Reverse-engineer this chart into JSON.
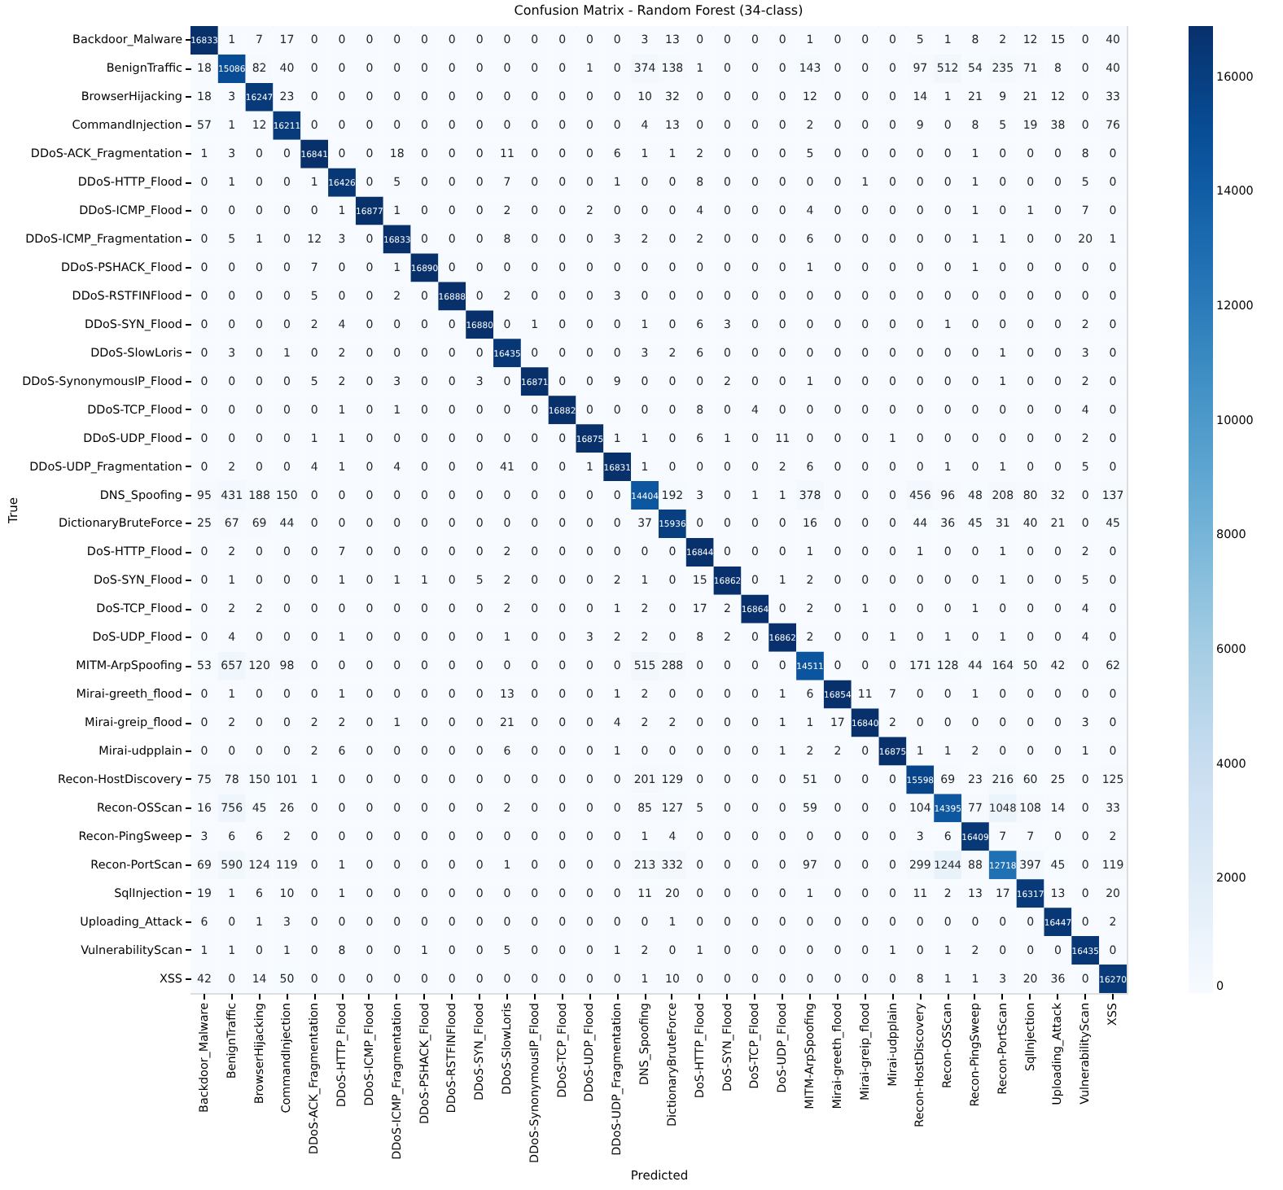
{
  "chart_data": {
    "type": "heatmap",
    "title": "Confusion Matrix - Random Forest (34-class)",
    "xlabel": "Predicted",
    "ylabel": "True",
    "categories": [
      "Backdoor_Malware",
      "BenignTraffic",
      "BrowserHijacking",
      "CommandInjection",
      "DDoS-ACK_Fragmentation",
      "DDoS-HTTP_Flood",
      "DDoS-ICMP_Flood",
      "DDoS-ICMP_Fragmentation",
      "DDoS-PSHACK_Flood",
      "DDoS-RSTFINFlood",
      "DDoS-SYN_Flood",
      "DDoS-SlowLoris",
      "DDoS-SynonymousIP_Flood",
      "DDoS-TCP_Flood",
      "DDoS-UDP_Flood",
      "DDoS-UDP_Fragmentation",
      "DNS_Spoofing",
      "DictionaryBruteForce",
      "DoS-HTTP_Flood",
      "DoS-SYN_Flood",
      "DoS-TCP_Flood",
      "DoS-UDP_Flood",
      "MITM-ArpSpoofing",
      "Mirai-greeth_flood",
      "Mirai-greip_flood",
      "Mirai-udpplain",
      "Recon-HostDiscovery",
      "Recon-OSScan",
      "Recon-PingSweep",
      "Recon-PortScan",
      "SqlInjection",
      "Uploading_Attack",
      "VulnerabilityScan",
      "XSS"
    ],
    "y_categories": [
      "Backdoor_Malware",
      "BenignTraffic",
      "BrowserHijacking",
      "CommandInjection",
      "DDoS-ACK_Fragmentation",
      "DDoS-HTTP_Flood",
      "DDoS-ICMP_Flood",
      "DDoS-ICMP_Fragmentation",
      "DDoS-PSHACK_Flood",
      "DDoS-RSTFINFlood",
      "DDoS-SYN_Flood",
      "DDoS-SlowLoris",
      "DDoS-SynonymousIP_Flood",
      "DDoS-TCP_Flood",
      "DDoS-UDP_Flood",
      "DDoS-UDP_Fragmentation",
      "DNS_Spoofing",
      "DictionaryBruteForce",
      "DoS-HTTP_Flood",
      "DoS-SYN_Flood",
      "DoS-TCP_Flood",
      "DoS-UDP_Flood",
      "MITM-ArpSpoofing",
      "Mirai-greeth_flood",
      "Mirai-greip_flood",
      "Mirai-udpplain",
      "Recon-HostDiscovery",
      "Recon-OSScan",
      "Recon-PingSweep",
      "Recon-PortScan",
      "SqlInjection",
      "Uploading_Attack",
      "VulnerabilityScan",
      "XSS"
    ],
    "cells": [
      [
        16833,
        1,
        7,
        17,
        0,
        0,
        0,
        0,
        0,
        0,
        0,
        0,
        0,
        0,
        0,
        0,
        3,
        13,
        0,
        0,
        0,
        0,
        1,
        0,
        0,
        0,
        5,
        1,
        8,
        2,
        12,
        15,
        0,
        40
      ],
      [
        18,
        15086,
        82,
        40,
        0,
        0,
        0,
        0,
        0,
        0,
        0,
        0,
        0,
        0,
        1,
        0,
        374,
        138,
        1,
        0,
        0,
        0,
        143,
        0,
        0,
        0,
        97,
        512,
        54,
        235,
        71,
        8,
        0,
        40
      ],
      [
        18,
        3,
        16247,
        23,
        0,
        0,
        0,
        0,
        0,
        0,
        0,
        0,
        0,
        0,
        0,
        0,
        10,
        32,
        0,
        0,
        0,
        0,
        12,
        0,
        0,
        0,
        14,
        1,
        21,
        9,
        21,
        12,
        0,
        33
      ],
      [
        57,
        1,
        12,
        16211,
        0,
        0,
        0,
        0,
        0,
        0,
        0,
        0,
        0,
        0,
        0,
        0,
        4,
        13,
        0,
        0,
        0,
        0,
        2,
        0,
        0,
        0,
        9,
        0,
        8,
        5,
        19,
        38,
        0,
        76
      ],
      [
        1,
        3,
        0,
        0,
        16841,
        0,
        0,
        18,
        0,
        0,
        0,
        11,
        0,
        0,
        0,
        6,
        1,
        1,
        2,
        0,
        0,
        0,
        5,
        0,
        0,
        0,
        0,
        0,
        1,
        0,
        0,
        0,
        8,
        0
      ],
      [
        0,
        1,
        0,
        0,
        1,
        16426,
        0,
        5,
        0,
        0,
        0,
        7,
        0,
        0,
        0,
        1,
        0,
        0,
        8,
        0,
        0,
        0,
        0,
        0,
        1,
        0,
        0,
        0,
        1,
        0,
        0,
        0,
        5,
        0
      ],
      [
        0,
        0,
        0,
        0,
        0,
        1,
        16877,
        1,
        0,
        0,
        0,
        2,
        0,
        0,
        2,
        0,
        0,
        0,
        4,
        0,
        0,
        0,
        4,
        0,
        0,
        0,
        0,
        0,
        1,
        0,
        1,
        0,
        7,
        0
      ],
      [
        0,
        5,
        1,
        0,
        12,
        3,
        0,
        16833,
        0,
        0,
        0,
        8,
        0,
        0,
        0,
        3,
        2,
        0,
        2,
        0,
        0,
        0,
        6,
        0,
        0,
        0,
        0,
        0,
        1,
        1,
        0,
        0,
        20,
        1
      ],
      [
        0,
        0,
        0,
        0,
        7,
        0,
        0,
        1,
        16890,
        0,
        0,
        0,
        0,
        0,
        0,
        0,
        0,
        0,
        0,
        0,
        0,
        0,
        1,
        0,
        0,
        0,
        0,
        0,
        1,
        0,
        0,
        0,
        0,
        0
      ],
      [
        0,
        0,
        0,
        0,
        5,
        0,
        0,
        2,
        0,
        16888,
        0,
        2,
        0,
        0,
        0,
        3,
        0,
        0,
        0,
        0,
        0,
        0,
        0,
        0,
        0,
        0,
        0,
        0,
        0,
        0,
        0,
        0,
        0,
        0
      ],
      [
        0,
        0,
        0,
        0,
        2,
        4,
        0,
        0,
        0,
        0,
        16880,
        0,
        1,
        0,
        0,
        0,
        1,
        0,
        6,
        3,
        0,
        0,
        0,
        0,
        0,
        0,
        0,
        1,
        0,
        0,
        0,
        0,
        2,
        0
      ],
      [
        0,
        3,
        0,
        1,
        0,
        2,
        0,
        0,
        0,
        0,
        0,
        16435,
        0,
        0,
        0,
        0,
        3,
        2,
        6,
        0,
        0,
        0,
        0,
        0,
        0,
        0,
        0,
        0,
        0,
        1,
        0,
        0,
        3,
        0
      ],
      [
        0,
        0,
        0,
        0,
        5,
        2,
        0,
        3,
        0,
        0,
        3,
        0,
        16871,
        0,
        0,
        9,
        0,
        0,
        0,
        2,
        0,
        0,
        1,
        0,
        0,
        0,
        0,
        0,
        0,
        1,
        0,
        0,
        2,
        0
      ],
      [
        0,
        0,
        0,
        0,
        0,
        1,
        0,
        1,
        0,
        0,
        0,
        0,
        0,
        16882,
        0,
        0,
        0,
        0,
        8,
        0,
        4,
        0,
        0,
        0,
        0,
        0,
        0,
        0,
        0,
        0,
        0,
        0,
        4,
        0
      ],
      [
        0,
        0,
        0,
        0,
        1,
        1,
        0,
        0,
        0,
        0,
        0,
        0,
        0,
        0,
        16875,
        1,
        1,
        0,
        6,
        1,
        0,
        11,
        0,
        0,
        0,
        1,
        0,
        0,
        0,
        0,
        0,
        0,
        2,
        0
      ],
      [
        0,
        2,
        0,
        0,
        4,
        1,
        0,
        4,
        0,
        0,
        0,
        41,
        0,
        0,
        1,
        16831,
        1,
        0,
        0,
        0,
        0,
        2,
        6,
        0,
        0,
        0,
        0,
        1,
        0,
        1,
        0,
        0,
        5,
        0
      ],
      [
        95,
        431,
        188,
        150,
        0,
        0,
        0,
        0,
        0,
        0,
        0,
        0,
        0,
        0,
        0,
        0,
        14404,
        192,
        3,
        0,
        1,
        1,
        378,
        0,
        0,
        0,
        456,
        96,
        48,
        208,
        80,
        32,
        0,
        137
      ],
      [
        25,
        67,
        69,
        44,
        0,
        0,
        0,
        0,
        0,
        0,
        0,
        0,
        0,
        0,
        0,
        0,
        37,
        15936,
        0,
        0,
        0,
        0,
        16,
        0,
        0,
        0,
        44,
        36,
        45,
        31,
        40,
        21,
        0,
        45
      ],
      [
        0,
        2,
        0,
        0,
        0,
        7,
        0,
        0,
        0,
        0,
        0,
        2,
        0,
        0,
        0,
        0,
        0,
        0,
        16844,
        0,
        0,
        0,
        1,
        0,
        0,
        0,
        1,
        0,
        0,
        1,
        0,
        0,
        2,
        0
      ],
      [
        0,
        1,
        0,
        0,
        0,
        1,
        0,
        1,
        1,
        0,
        5,
        2,
        0,
        0,
        0,
        2,
        1,
        0,
        15,
        16862,
        0,
        1,
        2,
        0,
        0,
        0,
        0,
        0,
        0,
        1,
        0,
        0,
        5,
        0
      ],
      [
        0,
        2,
        2,
        0,
        0,
        0,
        0,
        0,
        0,
        0,
        0,
        2,
        0,
        0,
        0,
        1,
        2,
        0,
        17,
        2,
        16864,
        0,
        2,
        0,
        1,
        0,
        0,
        0,
        1,
        0,
        0,
        0,
        4,
        0
      ],
      [
        0,
        4,
        0,
        0,
        0,
        1,
        0,
        0,
        0,
        0,
        0,
        1,
        0,
        0,
        3,
        2,
        2,
        0,
        8,
        2,
        0,
        16862,
        2,
        0,
        0,
        1,
        0,
        1,
        0,
        1,
        0,
        0,
        4,
        0
      ],
      [
        53,
        657,
        120,
        98,
        0,
        0,
        0,
        0,
        0,
        0,
        0,
        0,
        0,
        0,
        0,
        0,
        515,
        288,
        0,
        0,
        0,
        0,
        14511,
        0,
        0,
        0,
        171,
        128,
        44,
        164,
        50,
        42,
        0,
        62
      ],
      [
        0,
        1,
        0,
        0,
        0,
        1,
        0,
        0,
        0,
        0,
        0,
        13,
        0,
        0,
        0,
        1,
        2,
        0,
        0,
        0,
        0,
        1,
        6,
        16854,
        11,
        7,
        0,
        0,
        1,
        0,
        0,
        0,
        0,
        0
      ],
      [
        0,
        2,
        0,
        0,
        2,
        2,
        0,
        1,
        0,
        0,
        0,
        21,
        0,
        0,
        0,
        4,
        2,
        2,
        0,
        0,
        0,
        1,
        1,
        17,
        16840,
        2,
        0,
        0,
        0,
        0,
        0,
        0,
        3,
        0
      ],
      [
        0,
        0,
        0,
        0,
        2,
        6,
        0,
        0,
        0,
        0,
        0,
        6,
        0,
        0,
        0,
        1,
        0,
        0,
        0,
        0,
        0,
        1,
        2,
        2,
        0,
        16875,
        1,
        1,
        2,
        0,
        0,
        0,
        1,
        0
      ],
      [
        75,
        78,
        150,
        101,
        1,
        0,
        0,
        0,
        0,
        0,
        0,
        0,
        0,
        0,
        0,
        0,
        201,
        129,
        0,
        0,
        0,
        0,
        51,
        0,
        0,
        0,
        15598,
        69,
        23,
        216,
        60,
        25,
        0,
        125
      ],
      [
        16,
        756,
        45,
        26,
        0,
        0,
        0,
        0,
        0,
        0,
        0,
        2,
        0,
        0,
        0,
        0,
        85,
        127,
        5,
        0,
        0,
        0,
        59,
        0,
        0,
        0,
        104,
        14395,
        77,
        1048,
        108,
        14,
        0,
        33
      ],
      [
        3,
        6,
        6,
        2,
        0,
        0,
        0,
        0,
        0,
        0,
        0,
        0,
        0,
        0,
        0,
        0,
        1,
        4,
        0,
        0,
        0,
        0,
        0,
        0,
        0,
        0,
        3,
        6,
        16409,
        7,
        7,
        0,
        0,
        2
      ],
      [
        69,
        590,
        124,
        119,
        0,
        1,
        0,
        0,
        0,
        0,
        0,
        1,
        0,
        0,
        0,
        0,
        213,
        332,
        0,
        0,
        0,
        0,
        97,
        0,
        0,
        0,
        299,
        1244,
        88,
        12718,
        397,
        45,
        0,
        119
      ],
      [
        19,
        1,
        6,
        10,
        0,
        1,
        0,
        0,
        0,
        0,
        0,
        0,
        0,
        0,
        0,
        0,
        11,
        20,
        0,
        0,
        0,
        0,
        1,
        0,
        0,
        0,
        11,
        2,
        13,
        17,
        16317,
        13,
        0,
        20
      ],
      [
        6,
        0,
        1,
        3,
        0,
        0,
        0,
        0,
        0,
        0,
        0,
        0,
        0,
        0,
        0,
        0,
        0,
        1,
        0,
        0,
        0,
        0,
        0,
        0,
        0,
        0,
        0,
        0,
        0,
        0,
        0,
        16447,
        0,
        2
      ],
      [
        1,
        1,
        0,
        1,
        0,
        8,
        0,
        0,
        1,
        0,
        0,
        5,
        0,
        0,
        0,
        1,
        2,
        0,
        1,
        0,
        0,
        0,
        0,
        0,
        0,
        1,
        0,
        1,
        2,
        0,
        0,
        0,
        16435,
        0
      ],
      [
        42,
        0,
        14,
        50,
        0,
        0,
        0,
        0,
        0,
        0,
        0,
        0,
        0,
        0,
        0,
        0,
        1,
        10,
        0,
        0,
        0,
        0,
        0,
        0,
        0,
        0,
        8,
        1,
        1,
        3,
        20,
        36,
        0,
        16270
      ]
    ],
    "clim": [
      0,
      16890
    ],
    "cticks": [
      0,
      2000,
      4000,
      6000,
      8000,
      10000,
      12000,
      14000,
      16000
    ],
    "data_labels": true
  }
}
